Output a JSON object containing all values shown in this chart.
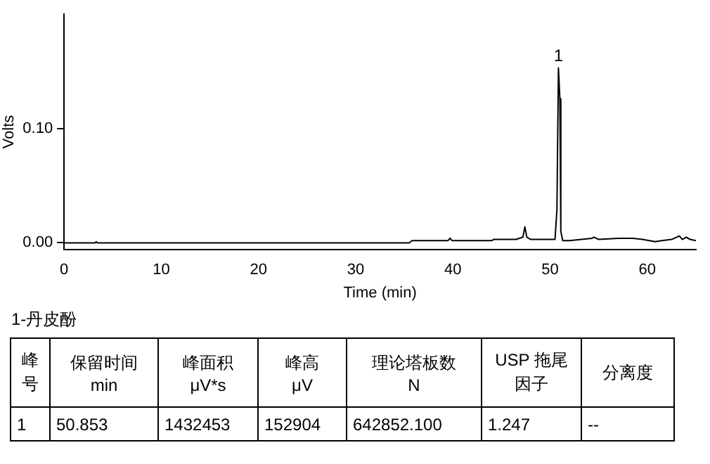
{
  "chart_data": {
    "type": "line",
    "xlabel": "Time (min)",
    "ylabel": "Volts",
    "x": [
      0,
      3.2,
      3.3,
      3.4,
      35.5,
      35.8,
      39.5,
      39.7,
      39.9,
      44,
      44.2,
      46.5,
      47.2,
      47.4,
      47.6,
      48,
      50.5,
      50.7,
      50.853,
      51.0,
      51.1,
      51.3,
      52,
      54.3,
      54.5,
      55,
      57,
      58.5,
      59.5,
      60.8,
      61.5,
      62.5,
      63.3,
      63.6,
      64,
      64.4,
      65
    ],
    "series": [
      {
        "color": "#000000",
        "values": [
          0,
          0,
          0.001,
          0,
          0,
          0.002,
          0.002,
          0.004,
          0.002,
          0.002,
          0.003,
          0.003,
          0.005,
          0.014,
          0.005,
          0.003,
          0.003,
          0.029,
          0.153,
          0.126,
          0.01,
          0.002,
          0.002,
          0.004,
          0.005,
          0.003,
          0.004,
          0.004,
          0.003,
          0.001,
          0.002,
          0.003,
          0.006,
          0.003,
          0.005,
          0.003,
          0.002
        ]
      }
    ],
    "xlim": [
      0,
      65
    ],
    "xticks": [
      0,
      10,
      20,
      30,
      40,
      50,
      60
    ],
    "ylim": [
      -0.006,
      0.2
    ],
    "yticks": [
      {
        "value": 0,
        "label": "0.00"
      },
      {
        "value": 0.1,
        "label": "0.10"
      }
    ],
    "grid": false,
    "legend": false,
    "marker": "none",
    "line_style": "solid",
    "annotations": [
      {
        "text": "1",
        "x": 50.853,
        "y": 0.153
      },
      "1-丹皮酚",
      "峰号",
      "保留时间\nmin",
      "峰面积\nμV*s",
      "峰高\nμV",
      "理论塔板数\nN",
      "USP 拖尾因子",
      "分离度",
      "1",
      "50.853",
      "1432453",
      "152904",
      "642852.100",
      "1.247",
      "--"
    ]
  }
}
